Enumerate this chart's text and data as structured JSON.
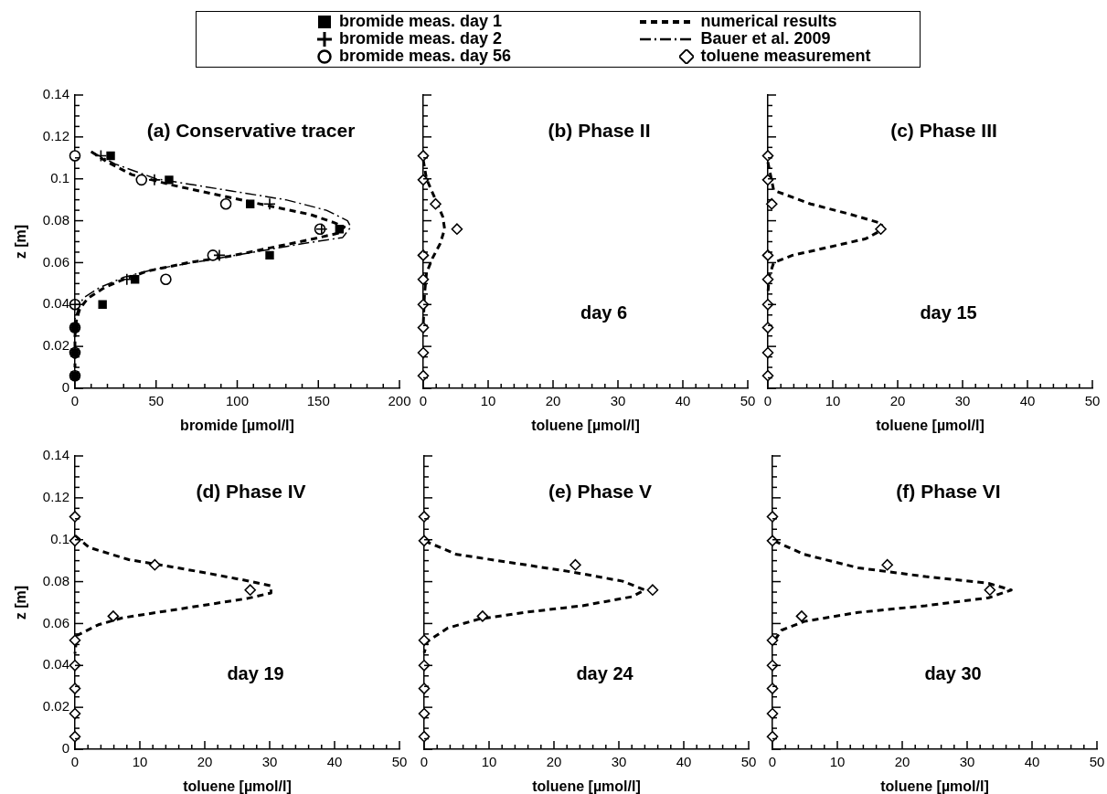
{
  "chart_data": [
    {
      "type": "scatter",
      "title": "(a) Conservative tracer",
      "xlabel": "bromide [µmol/l]",
      "ylabel": "z [m]",
      "xlim": [
        0,
        200
      ],
      "ylim": [
        0,
        0.14
      ],
      "xticks": [
        0,
        {
          "value": 10,
          "label": null
        },
        {
          "value": 20,
          "label": null
        },
        {
          "value": 30,
          "label": null
        },
        {
          "value": 40,
          "label": null
        },
        50,
        {
          "value": 60,
          "label": null
        },
        {
          "value": 70,
          "label": null
        },
        {
          "value": 80,
          "label": null
        },
        {
          "value": 90,
          "label": null
        },
        100,
        {
          "value": 110,
          "label": null
        },
        {
          "value": 120,
          "label": null
        },
        {
          "value": 130,
          "label": null
        },
        {
          "value": 140,
          "label": null
        },
        150,
        {
          "value": 160,
          "label": null
        },
        {
          "value": 170,
          "label": null
        },
        {
          "value": 180,
          "label": null
        },
        {
          "value": 190,
          "label": null
        },
        200
      ],
      "yticks": [
        0,
        {
          "value": 0.005,
          "label": null
        },
        {
          "value": 0.01,
          "label": null
        },
        {
          "value": 0.015,
          "label": null
        },
        0.02,
        {
          "value": 0.025,
          "label": null
        },
        {
          "value": 0.03,
          "label": null
        },
        {
          "value": 0.035,
          "label": null
        },
        0.04,
        {
          "value": 0.045,
          "label": null
        },
        {
          "value": 0.05,
          "label": null
        },
        {
          "value": 0.055,
          "label": null
        },
        0.06,
        {
          "value": 0.065,
          "label": null
        },
        {
          "value": 0.07,
          "label": null
        },
        {
          "value": 0.075,
          "label": null
        },
        0.08,
        {
          "value": 0.085,
          "label": null
        },
        {
          "value": 0.09,
          "label": null
        },
        {
          "value": 0.095,
          "label": null
        },
        0.1,
        {
          "value": 0.105,
          "label": null
        },
        {
          "value": 0.11,
          "label": null
        },
        {
          "value": 0.115,
          "label": null
        },
        0.12,
        {
          "value": 0.125,
          "label": null
        },
        {
          "value": 0.13,
          "label": null
        },
        {
          "value": 0.135,
          "label": null
        },
        0.14
      ],
      "grid": false,
      "legend": "top",
      "series": [
        {
          "name": "bromide meas. day 1",
          "type": "scatter",
          "marker": "square",
          "color": "#000000",
          "x": [
            22,
            58,
            108,
            163,
            120,
            37,
            17,
            0,
            0,
            0
          ],
          "values": [
            0.111,
            0.0995,
            0.088,
            0.076,
            0.0635,
            0.052,
            0.04,
            0.029,
            0.017,
            0.006
          ]
        },
        {
          "name": "bromide meas. day 2",
          "type": "scatter",
          "marker": "cross",
          "color": "#000000",
          "x": [
            16,
            49,
            120,
            152,
            89,
            32,
            0,
            0,
            0,
            0
          ],
          "values": [
            0.111,
            0.0995,
            0.088,
            0.076,
            0.0635,
            0.052,
            0.04,
            0.029,
            0.017,
            0.006
          ]
        },
        {
          "name": "bromide meas. day 56",
          "type": "scatter",
          "marker": "circle",
          "color": "#000000",
          "x": [
            0,
            41,
            93,
            151,
            85,
            56,
            0,
            0,
            0,
            0
          ],
          "values": [
            0.111,
            0.0995,
            0.088,
            0.076,
            0.0635,
            0.052,
            0.04,
            0.029,
            0.017,
            0.006
          ]
        },
        {
          "name": "numerical results",
          "type": "line",
          "marker": "none",
          "line_style": "dashed",
          "color": "#000000",
          "x": [
            10,
            20,
            35,
            60,
            90,
            120,
            145,
            160,
            166,
            162,
            145,
            120,
            95,
            70,
            45,
            30,
            18,
            8,
            3,
            1,
            0,
            0
          ],
          "values": [
            0.113,
            0.108,
            0.102,
            0.097,
            0.092,
            0.087,
            0.083,
            0.079,
            0.077,
            0.074,
            0.071,
            0.067,
            0.063,
            0.06,
            0.056,
            0.052,
            0.048,
            0.043,
            0.038,
            0.033,
            0.025,
            0.01
          ]
        },
        {
          "name": "Bauer et al. 2009",
          "type": "line",
          "marker": "none",
          "line_style": "dashdot",
          "color": "#000000",
          "x": [
            10,
            25,
            50,
            90,
            130,
            155,
            168,
            170,
            165,
            140,
            110,
            80,
            50,
            30,
            15,
            5,
            2,
            0
          ],
          "values": [
            0.113,
            0.107,
            0.1,
            0.095,
            0.09,
            0.085,
            0.08,
            0.077,
            0.072,
            0.069,
            0.065,
            0.061,
            0.057,
            0.053,
            0.048,
            0.043,
            0.038,
            0.033
          ]
        }
      ]
    },
    {
      "type": "scatter",
      "title": "(b) Phase II",
      "xlabel": "toluene [µmol/l]",
      "annotations": [
        "day 6"
      ],
      "xlim": [
        0,
        50
      ],
      "ylim": [
        0,
        0.14
      ],
      "tick_labels": "x",
      "xticks": [
        0,
        {
          "value": 2,
          "label": null
        },
        {
          "value": 4,
          "label": null
        },
        {
          "value": 6,
          "label": null
        },
        {
          "value": 8,
          "label": null
        },
        10,
        {
          "value": 12,
          "label": null
        },
        {
          "value": 14,
          "label": null
        },
        {
          "value": 16,
          "label": null
        },
        {
          "value": 18,
          "label": null
        },
        20,
        {
          "value": 22,
          "label": null
        },
        {
          "value": 24,
          "label": null
        },
        {
          "value": 26,
          "label": null
        },
        {
          "value": 28,
          "label": null
        },
        30,
        {
          "value": 32,
          "label": null
        },
        {
          "value": 34,
          "label": null
        },
        {
          "value": 36,
          "label": null
        },
        {
          "value": 38,
          "label": null
        },
        40,
        {
          "value": 42,
          "label": null
        },
        {
          "value": 44,
          "label": null
        },
        {
          "value": 46,
          "label": null
        },
        {
          "value": 48,
          "label": null
        },
        50
      ],
      "yticks": [
        0,
        {
          "value": 0.005,
          "label": null
        },
        {
          "value": 0.01,
          "label": null
        },
        {
          "value": 0.015,
          "label": null
        },
        0.02,
        {
          "value": 0.025,
          "label": null
        },
        {
          "value": 0.03,
          "label": null
        },
        {
          "value": 0.035,
          "label": null
        },
        0.04,
        {
          "value": 0.045,
          "label": null
        },
        {
          "value": 0.05,
          "label": null
        },
        {
          "value": 0.055,
          "label": null
        },
        0.06,
        {
          "value": 0.065,
          "label": null
        },
        {
          "value": 0.07,
          "label": null
        },
        {
          "value": 0.075,
          "label": null
        },
        0.08,
        {
          "value": 0.085,
          "label": null
        },
        {
          "value": 0.09,
          "label": null
        },
        {
          "value": 0.095,
          "label": null
        },
        0.1,
        {
          "value": 0.105,
          "label": null
        },
        {
          "value": 0.11,
          "label": null
        },
        {
          "value": 0.115,
          "label": null
        },
        0.12,
        {
          "value": 0.125,
          "label": null
        },
        {
          "value": 0.13,
          "label": null
        },
        {
          "value": 0.135,
          "label": null
        },
        0.14
      ],
      "grid": false,
      "legend": "top",
      "series": [
        {
          "name": "toluene measurement",
          "type": "scatter",
          "marker": "diamond",
          "color": "#000000",
          "x": [
            0,
            0,
            1.9,
            5.2,
            0,
            0,
            0,
            0,
            0,
            0
          ],
          "values": [
            0.111,
            0.0995,
            0.088,
            0.076,
            0.0635,
            0.052,
            0.04,
            0.029,
            0.017,
            0.006
          ]
        },
        {
          "type": "line",
          "marker": "none",
          "line_style": "dashed",
          "color": "#000000",
          "x": [
            0,
            0.5,
            1.9,
            3,
            3.3,
            2.6,
            1.4,
            0.5,
            0.2,
            0
          ],
          "values": [
            0.109,
            0.1,
            0.09,
            0.082,
            0.076,
            0.069,
            0.062,
            0.055,
            0.045,
            0.03
          ]
        }
      ]
    },
    {
      "type": "scatter",
      "title": "(c) Phase III",
      "xlabel": "toluene [µmol/l]",
      "annotations": [
        "day 15"
      ],
      "xlim": [
        0,
        50
      ],
      "ylim": [
        0,
        0.14
      ],
      "tick_labels": "x",
      "xticks": [
        0,
        {
          "value": 2,
          "label": null
        },
        {
          "value": 4,
          "label": null
        },
        {
          "value": 6,
          "label": null
        },
        {
          "value": 8,
          "label": null
        },
        10,
        {
          "value": 12,
          "label": null
        },
        {
          "value": 14,
          "label": null
        },
        {
          "value": 16,
          "label": null
        },
        {
          "value": 18,
          "label": null
        },
        20,
        {
          "value": 22,
          "label": null
        },
        {
          "value": 24,
          "label": null
        },
        {
          "value": 26,
          "label": null
        },
        {
          "value": 28,
          "label": null
        },
        30,
        {
          "value": 32,
          "label": null
        },
        {
          "value": 34,
          "label": null
        },
        {
          "value": 36,
          "label": null
        },
        {
          "value": 38,
          "label": null
        },
        40,
        {
          "value": 42,
          "label": null
        },
        {
          "value": 44,
          "label": null
        },
        {
          "value": 46,
          "label": null
        },
        {
          "value": 48,
          "label": null
        },
        50
      ],
      "yticks": [
        0,
        {
          "value": 0.005,
          "label": null
        },
        {
          "value": 0.01,
          "label": null
        },
        {
          "value": 0.015,
          "label": null
        },
        0.02,
        {
          "value": 0.025,
          "label": null
        },
        {
          "value": 0.03,
          "label": null
        },
        {
          "value": 0.035,
          "label": null
        },
        0.04,
        {
          "value": 0.045,
          "label": null
        },
        {
          "value": 0.05,
          "label": null
        },
        {
          "value": 0.055,
          "label": null
        },
        0.06,
        {
          "value": 0.065,
          "label": null
        },
        {
          "value": 0.07,
          "label": null
        },
        {
          "value": 0.075,
          "label": null
        },
        0.08,
        {
          "value": 0.085,
          "label": null
        },
        {
          "value": 0.09,
          "label": null
        },
        {
          "value": 0.095,
          "label": null
        },
        0.1,
        {
          "value": 0.105,
          "label": null
        },
        {
          "value": 0.11,
          "label": null
        },
        {
          "value": 0.115,
          "label": null
        },
        0.12,
        {
          "value": 0.125,
          "label": null
        },
        {
          "value": 0.13,
          "label": null
        },
        {
          "value": 0.135,
          "label": null
        },
        0.14
      ],
      "grid": false,
      "series": [
        {
          "type": "scatter",
          "marker": "diamond",
          "color": "#000000",
          "x": [
            0,
            0,
            0.6,
            17.4,
            0,
            0,
            0,
            0,
            0,
            0
          ],
          "values": [
            0.111,
            0.0995,
            0.088,
            0.076,
            0.0635,
            0.052,
            0.04,
            0.029,
            0.017,
            0.006
          ]
        },
        {
          "type": "line",
          "marker": "none",
          "line_style": "dashed",
          "color": "#000000",
          "x": [
            0,
            0.9,
            6.6,
            12.8,
            17.5,
            17.7,
            15.1,
            9,
            3.8,
            0.9,
            0.2,
            0
          ],
          "values": [
            0.108,
            0.0945,
            0.088,
            0.083,
            0.0787,
            0.0758,
            0.0714,
            0.0671,
            0.0635,
            0.06,
            0.0534,
            0.045
          ]
        }
      ]
    },
    {
      "type": "scatter",
      "title": "(d) Phase IV",
      "xlabel": "toluene [µmol/l]",
      "ylabel": "z [m]",
      "annotations": [
        "day 19"
      ],
      "xlim": [
        0,
        50
      ],
      "ylim": [
        0,
        0.14
      ],
      "xticks": [
        0,
        {
          "value": 2,
          "label": null
        },
        {
          "value": 4,
          "label": null
        },
        {
          "value": 6,
          "label": null
        },
        {
          "value": 8,
          "label": null
        },
        10,
        {
          "value": 12,
          "label": null
        },
        {
          "value": 14,
          "label": null
        },
        {
          "value": 16,
          "label": null
        },
        {
          "value": 18,
          "label": null
        },
        20,
        {
          "value": 22,
          "label": null
        },
        {
          "value": 24,
          "label": null
        },
        {
          "value": 26,
          "label": null
        },
        {
          "value": 28,
          "label": null
        },
        30,
        {
          "value": 32,
          "label": null
        },
        {
          "value": 34,
          "label": null
        },
        {
          "value": 36,
          "label": null
        },
        {
          "value": 38,
          "label": null
        },
        40,
        {
          "value": 42,
          "label": null
        },
        {
          "value": 44,
          "label": null
        },
        {
          "value": 46,
          "label": null
        },
        {
          "value": 48,
          "label": null
        },
        50
      ],
      "yticks": [
        0,
        {
          "value": 0.005,
          "label": null
        },
        {
          "value": 0.01,
          "label": null
        },
        {
          "value": 0.015,
          "label": null
        },
        0.02,
        {
          "value": 0.025,
          "label": null
        },
        {
          "value": 0.03,
          "label": null
        },
        {
          "value": 0.035,
          "label": null
        },
        0.04,
        {
          "value": 0.045,
          "label": null
        },
        {
          "value": 0.05,
          "label": null
        },
        {
          "value": 0.055,
          "label": null
        },
        0.06,
        {
          "value": 0.065,
          "label": null
        },
        {
          "value": 0.07,
          "label": null
        },
        {
          "value": 0.075,
          "label": null
        },
        0.08,
        {
          "value": 0.085,
          "label": null
        },
        {
          "value": 0.09,
          "label": null
        },
        {
          "value": 0.095,
          "label": null
        },
        0.1,
        {
          "value": 0.105,
          "label": null
        },
        {
          "value": 0.11,
          "label": null
        },
        {
          "value": 0.115,
          "label": null
        },
        0.12,
        {
          "value": 0.125,
          "label": null
        },
        {
          "value": 0.13,
          "label": null
        },
        {
          "value": 0.135,
          "label": null
        },
        0.14
      ],
      "grid": false,
      "series": [
        {
          "type": "scatter",
          "marker": "diamond",
          "color": "#000000",
          "x": [
            0,
            0,
            12.3,
            27,
            5.9,
            0,
            0,
            0,
            0,
            0
          ],
          "values": [
            0.111,
            0.0995,
            0.088,
            0.076,
            0.0635,
            0.052,
            0.04,
            0.029,
            0.017,
            0.006
          ]
        },
        {
          "type": "line",
          "marker": "none",
          "line_style": "dashed",
          "color": "#000000",
          "x": [
            0,
            2.2,
            8.3,
            13.9,
            20.5,
            26.6,
            30.2,
            30.2,
            26.6,
            20,
            13.9,
            7.3,
            3.6,
            0.3,
            0
          ],
          "values": [
            0.102,
            0.0963,
            0.0905,
            0.0876,
            0.084,
            0.0804,
            0.078,
            0.0746,
            0.072,
            0.0688,
            0.0659,
            0.0627,
            0.0594,
            0.0543,
            0.0456
          ]
        }
      ]
    },
    {
      "type": "scatter",
      "title": "(e) Phase V",
      "xlabel": "toluene [µmol/l]",
      "annotations": [
        "day 24"
      ],
      "xlim": [
        0,
        50
      ],
      "ylim": [
        0,
        0.14
      ],
      "tick_labels": "x",
      "xticks": [
        0,
        {
          "value": 2,
          "label": null
        },
        {
          "value": 4,
          "label": null
        },
        {
          "value": 6,
          "label": null
        },
        {
          "value": 8,
          "label": null
        },
        10,
        {
          "value": 12,
          "label": null
        },
        {
          "value": 14,
          "label": null
        },
        {
          "value": 16,
          "label": null
        },
        {
          "value": 18,
          "label": null
        },
        20,
        {
          "value": 22,
          "label": null
        },
        {
          "value": 24,
          "label": null
        },
        {
          "value": 26,
          "label": null
        },
        {
          "value": 28,
          "label": null
        },
        30,
        {
          "value": 32,
          "label": null
        },
        {
          "value": 34,
          "label": null
        },
        {
          "value": 36,
          "label": null
        },
        {
          "value": 38,
          "label": null
        },
        40,
        {
          "value": 42,
          "label": null
        },
        {
          "value": 44,
          "label": null
        },
        {
          "value": 46,
          "label": null
        },
        {
          "value": 48,
          "label": null
        },
        50
      ],
      "yticks": [
        0,
        {
          "value": 0.005,
          "label": null
        },
        {
          "value": 0.01,
          "label": null
        },
        {
          "value": 0.015,
          "label": null
        },
        0.02,
        {
          "value": 0.025,
          "label": null
        },
        {
          "value": 0.03,
          "label": null
        },
        {
          "value": 0.035,
          "label": null
        },
        0.04,
        {
          "value": 0.045,
          "label": null
        },
        {
          "value": 0.05,
          "label": null
        },
        {
          "value": 0.055,
          "label": null
        },
        0.06,
        {
          "value": 0.065,
          "label": null
        },
        {
          "value": 0.07,
          "label": null
        },
        {
          "value": 0.075,
          "label": null
        },
        0.08,
        {
          "value": 0.085,
          "label": null
        },
        {
          "value": 0.09,
          "label": null
        },
        {
          "value": 0.095,
          "label": null
        },
        0.1,
        {
          "value": 0.105,
          "label": null
        },
        {
          "value": 0.11,
          "label": null
        },
        {
          "value": 0.115,
          "label": null
        },
        0.12,
        {
          "value": 0.125,
          "label": null
        },
        {
          "value": 0.13,
          "label": null
        },
        {
          "value": 0.135,
          "label": null
        },
        0.14
      ],
      "grid": false,
      "series": [
        {
          "type": "scatter",
          "marker": "diamond",
          "color": "#000000",
          "x": [
            0,
            0,
            23.3,
            35.2,
            9,
            0,
            0,
            0,
            0,
            0
          ],
          "values": [
            0.111,
            0.0995,
            0.088,
            0.076,
            0.0635,
            0.052,
            0.04,
            0.029,
            0.017,
            0.006
          ]
        },
        {
          "type": "line",
          "marker": "none",
          "line_style": "dashed",
          "color": "#000000",
          "x": [
            0.1,
            5,
            14,
            23,
            30.6,
            34,
            32,
            24.4,
            15.4,
            8.4,
            3.6,
            0.5,
            0
          ],
          "values": [
            0.0994,
            0.093,
            0.0888,
            0.0845,
            0.0802,
            0.076,
            0.0728,
            0.0685,
            0.0653,
            0.0621,
            0.0578,
            0.0514,
            0.046
          ]
        }
      ]
    },
    {
      "type": "scatter",
      "title": "(f) Phase VI",
      "xlabel": "toluene [µmol/l]",
      "annotations": [
        "day 30"
      ],
      "xlim": [
        0,
        50
      ],
      "ylim": [
        0,
        0.14
      ],
      "tick_labels": "x",
      "xticks": [
        0,
        {
          "value": 2,
          "label": null
        },
        {
          "value": 4,
          "label": null
        },
        {
          "value": 6,
          "label": null
        },
        {
          "value": 8,
          "label": null
        },
        10,
        {
          "value": 12,
          "label": null
        },
        {
          "value": 14,
          "label": null
        },
        {
          "value": 16,
          "label": null
        },
        {
          "value": 18,
          "label": null
        },
        20,
        {
          "value": 22,
          "label": null
        },
        {
          "value": 24,
          "label": null
        },
        {
          "value": 26,
          "label": null
        },
        {
          "value": 28,
          "label": null
        },
        30,
        {
          "value": 32,
          "label": null
        },
        {
          "value": 34,
          "label": null
        },
        {
          "value": 36,
          "label": null
        },
        {
          "value": 38,
          "label": null
        },
        40,
        {
          "value": 42,
          "label": null
        },
        {
          "value": 44,
          "label": null
        },
        {
          "value": 46,
          "label": null
        },
        {
          "value": 48,
          "label": null
        },
        50
      ],
      "yticks": [
        0,
        {
          "value": 0.005,
          "label": null
        },
        {
          "value": 0.01,
          "label": null
        },
        {
          "value": 0.015,
          "label": null
        },
        0.02,
        {
          "value": 0.025,
          "label": null
        },
        {
          "value": 0.03,
          "label": null
        },
        {
          "value": 0.035,
          "label": null
        },
        0.04,
        {
          "value": 0.045,
          "label": null
        },
        {
          "value": 0.05,
          "label": null
        },
        {
          "value": 0.055,
          "label": null
        },
        0.06,
        {
          "value": 0.065,
          "label": null
        },
        {
          "value": 0.07,
          "label": null
        },
        {
          "value": 0.075,
          "label": null
        },
        0.08,
        {
          "value": 0.085,
          "label": null
        },
        {
          "value": 0.09,
          "label": null
        },
        {
          "value": 0.095,
          "label": null
        },
        0.1,
        {
          "value": 0.105,
          "label": null
        },
        {
          "value": 0.11,
          "label": null
        },
        {
          "value": 0.115,
          "label": null
        },
        0.12,
        {
          "value": 0.125,
          "label": null
        },
        {
          "value": 0.13,
          "label": null
        },
        {
          "value": 0.135,
          "label": null
        },
        0.14
      ],
      "grid": false,
      "series": [
        {
          "type": "scatter",
          "marker": "diamond",
          "color": "#000000",
          "x": [
            0,
            0,
            17.7,
            33.5,
            4.5,
            0,
            0,
            0,
            0,
            0
          ],
          "values": [
            0.111,
            0.0995,
            0.088,
            0.076,
            0.0635,
            0.052,
            0.04,
            0.029,
            0.017,
            0.006
          ]
        },
        {
          "type": "line",
          "marker": "none",
          "line_style": "dashed",
          "color": "#000000",
          "x": [
            0.3,
            4.9,
            13.2,
            23.6,
            33.3,
            36.8,
            33.3,
            23.6,
            13.2,
            4.9,
            1.4,
            0
          ],
          "values": [
            0.0994,
            0.093,
            0.0866,
            0.0824,
            0.0792,
            0.076,
            0.0723,
            0.0685,
            0.0653,
            0.061,
            0.0568,
            0.0504
          ]
        }
      ]
    }
  ]
}
